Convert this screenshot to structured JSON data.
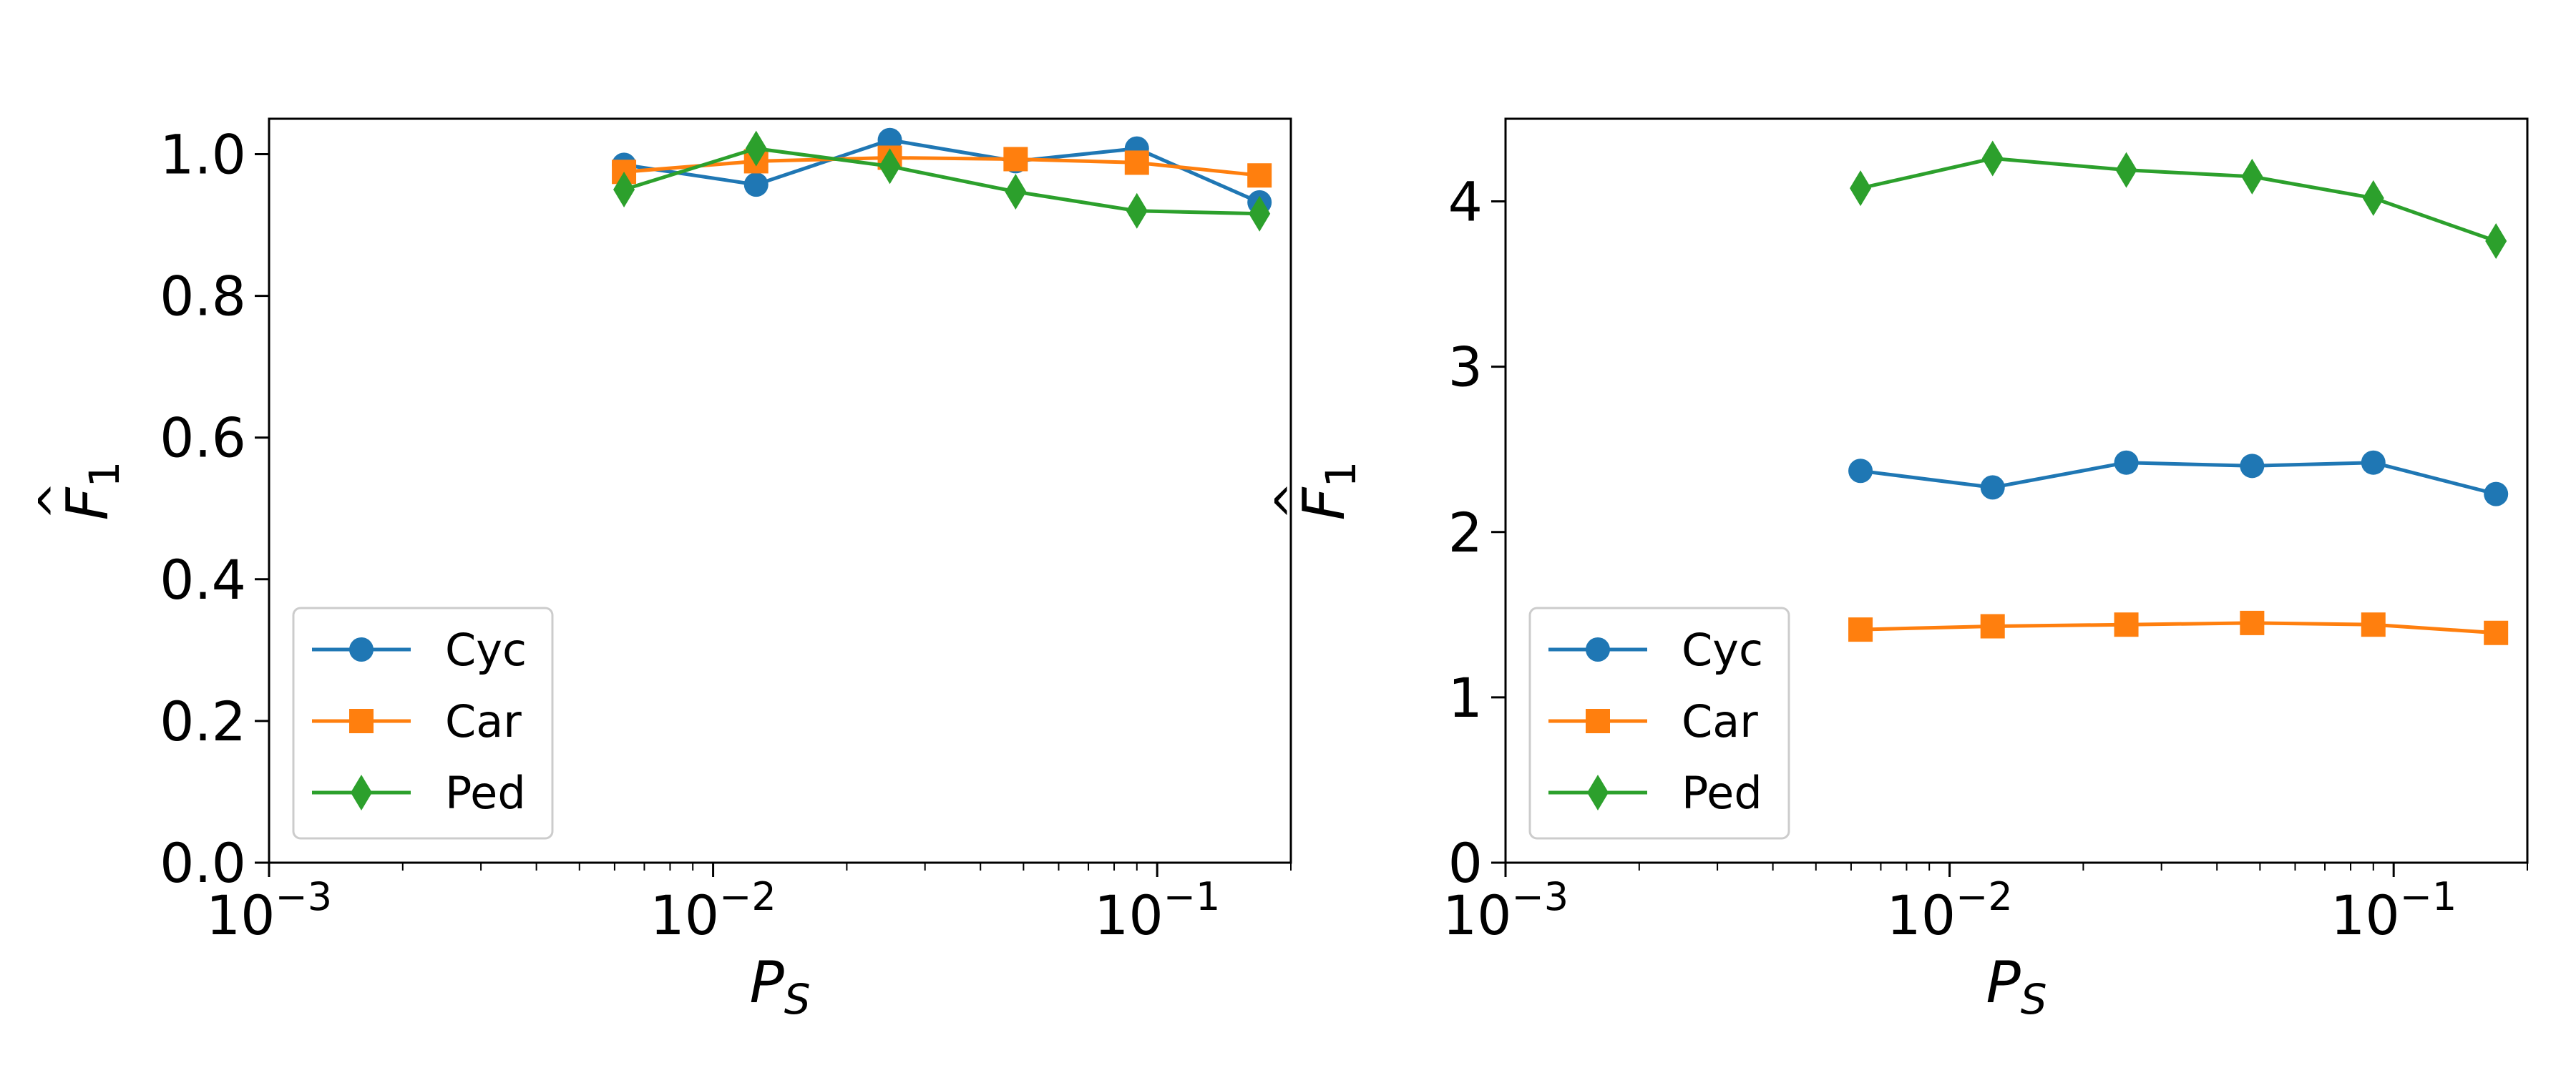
{
  "chart_data": [
    {
      "type": "line",
      "panel": "left",
      "title": "",
      "xlabel": "P",
      "xlabel_sub": "S",
      "ylabel": "F",
      "ylabel_sub": "1",
      "ylabel_hat": "^",
      "xscale": "log",
      "xlim": [
        0.001,
        0.2
      ],
      "ylim": [
        0,
        1.05
      ],
      "x_ticks": [
        {
          "value": 0.001,
          "base": "10",
          "exp": "−3"
        },
        {
          "value": 0.01,
          "base": "10",
          "exp": "−2"
        },
        {
          "value": 0.1,
          "base": "10",
          "exp": "−1"
        }
      ],
      "y_ticks": [
        {
          "value": 0.0,
          "label": "0.0"
        },
        {
          "value": 0.2,
          "label": "0.2"
        },
        {
          "value": 0.4,
          "label": "0.4"
        },
        {
          "value": 0.6,
          "label": "0.6"
        },
        {
          "value": 0.8,
          "label": "0.8"
        },
        {
          "value": 1.0,
          "label": "1.0"
        }
      ],
      "legend_position": "lower-left",
      "x": [
        0.0063,
        0.0125,
        0.025,
        0.048,
        0.09,
        0.17
      ],
      "series": [
        {
          "name": "Cyc",
          "color": "#1f77b4",
          "marker": "circle",
          "values": [
            0.985,
            0.957,
            1.02,
            0.99,
            1.008,
            0.932
          ]
        },
        {
          "name": "Car",
          "color": "#ff7f0e",
          "marker": "square",
          "values": [
            0.975,
            0.99,
            0.995,
            0.993,
            0.988,
            0.97
          ]
        },
        {
          "name": "Ped",
          "color": "#2ca02c",
          "marker": "diamond",
          "values": [
            0.95,
            1.008,
            0.983,
            0.947,
            0.92,
            0.916
          ]
        }
      ]
    },
    {
      "type": "line",
      "panel": "right",
      "title": "",
      "xlabel": "P",
      "xlabel_sub": "S",
      "ylabel": "F",
      "ylabel_sub": "1",
      "ylabel_hat": "^",
      "xscale": "log",
      "xlim": [
        0.001,
        0.2
      ],
      "ylim": [
        0,
        4.5
      ],
      "x_ticks": [
        {
          "value": 0.001,
          "base": "10",
          "exp": "−3"
        },
        {
          "value": 0.01,
          "base": "10",
          "exp": "−2"
        },
        {
          "value": 0.1,
          "base": "10",
          "exp": "−1"
        }
      ],
      "y_ticks": [
        {
          "value": 0,
          "label": "0"
        },
        {
          "value": 1,
          "label": "1"
        },
        {
          "value": 2,
          "label": "2"
        },
        {
          "value": 3,
          "label": "3"
        },
        {
          "value": 4,
          "label": "4"
        }
      ],
      "legend_position": "lower-left",
      "x": [
        0.0063,
        0.0125,
        0.025,
        0.048,
        0.09,
        0.17
      ],
      "series": [
        {
          "name": "Cyc",
          "color": "#1f77b4",
          "marker": "circle",
          "values": [
            2.37,
            2.27,
            2.42,
            2.4,
            2.42,
            2.23
          ]
        },
        {
          "name": "Car",
          "color": "#ff7f0e",
          "marker": "square",
          "values": [
            1.41,
            1.43,
            1.44,
            1.45,
            1.44,
            1.39
          ]
        },
        {
          "name": "Ped",
          "color": "#2ca02c",
          "marker": "diamond",
          "values": [
            4.08,
            4.26,
            4.19,
            4.15,
            4.02,
            3.76
          ]
        }
      ]
    }
  ]
}
